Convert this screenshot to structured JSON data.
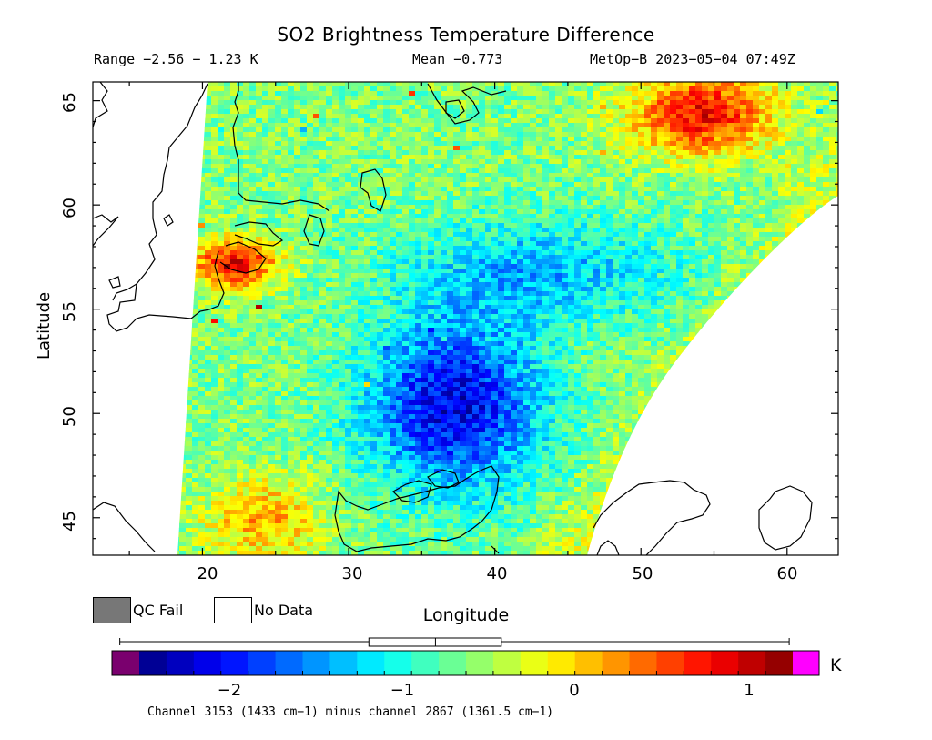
{
  "title": "SO2 Brightness Temperature Difference",
  "header": {
    "range": "Range −2.56 − 1.23 K",
    "mean": "Mean −0.773",
    "meta": "MetOp−B 2023−05−04 07:49Z"
  },
  "axes": {
    "xlabel": "Longitude",
    "ylabel": "Latitude",
    "xticks": [
      "20",
      "30",
      "40",
      "50",
      "60"
    ],
    "yticks": [
      "45",
      "50",
      "55",
      "60",
      "65"
    ],
    "xlim": [
      12.5,
      63.5
    ],
    "ylim": [
      43.2,
      65.9
    ]
  },
  "legend": {
    "qc_fail": "QC Fail",
    "no_data": "No Data",
    "qc_color": "#777777",
    "no_data_color": "#ffffff"
  },
  "colorbar": {
    "ticks": [
      "−2",
      "−1",
      "0",
      "1"
    ],
    "tick_values": [
      -2,
      -1,
      0,
      1
    ],
    "vmin": -2.45,
    "vmax": 1.25,
    "unit": "K",
    "under_color": "#7a006e",
    "over_color": "#ff00ff",
    "boxplot": {
      "min": -2.56,
      "q1": -1.15,
      "median": -0.773,
      "q3": -0.4,
      "max": 1.23
    }
  },
  "footnote": "Channel 3153 (1433 cm−1) minus channel 2867 (1361.5 cm−1)"
}
